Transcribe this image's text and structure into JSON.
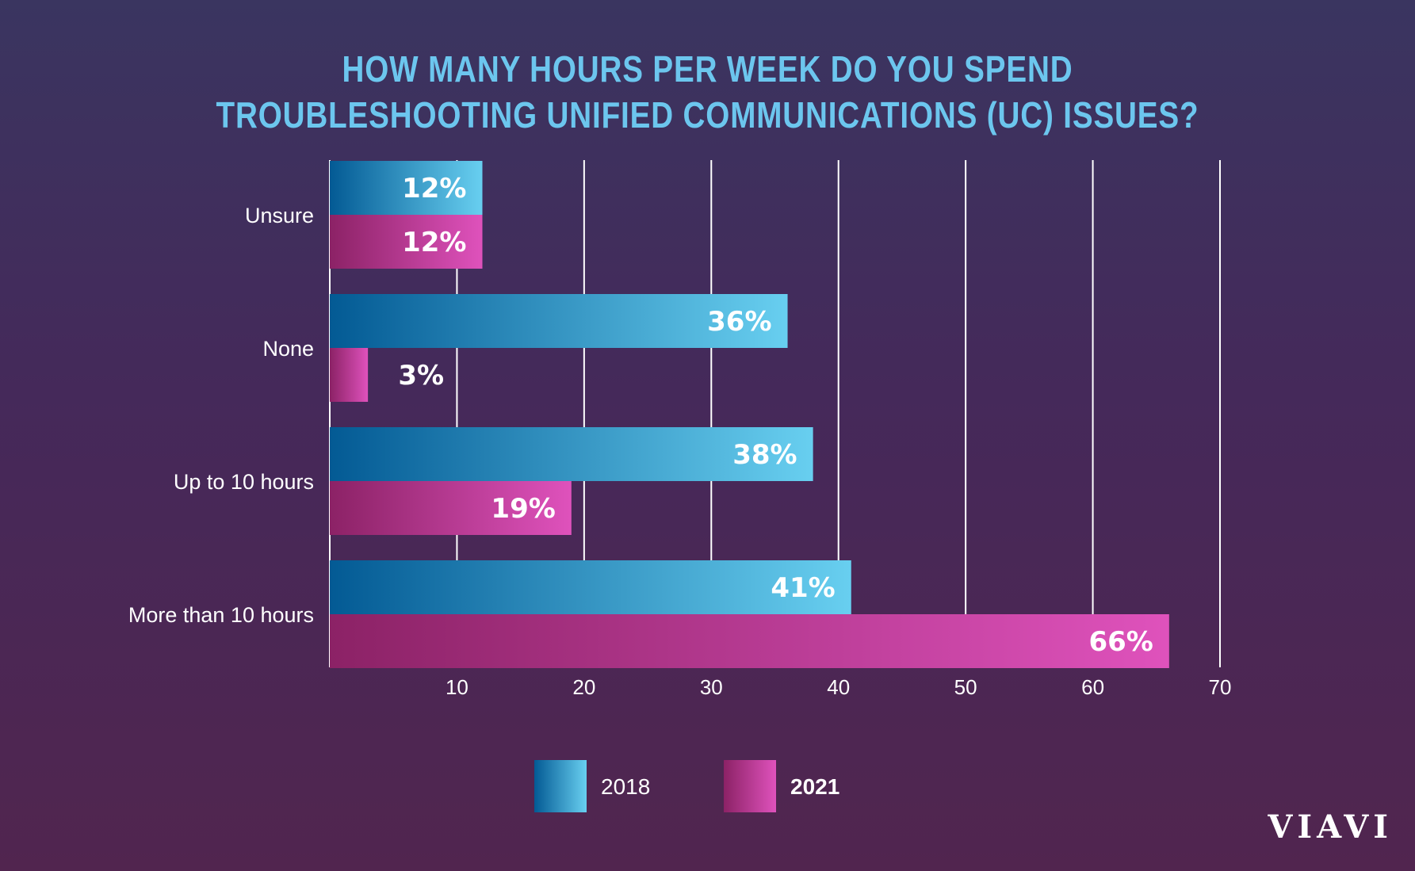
{
  "title_lines": [
    "HOW MANY HOURS PER WEEK DO YOU SPEND",
    "TROUBLESHOOTING UNIFIED COMMUNICATIONS (UC) ISSUES?"
  ],
  "brand": "VIAVI",
  "colors": {
    "series_2018_start": "#035a94",
    "series_2018_end": "#68cff0",
    "series_2021_start": "#8c2266",
    "series_2021_end": "#df52bc",
    "gridline": "#ffffff",
    "title": "#6cc6ee"
  },
  "chart_data": {
    "type": "bar",
    "orientation": "horizontal",
    "title": "HOW MANY HOURS PER WEEK DO YOU SPEND TROUBLESHOOTING UNIFIED COMMUNICATIONS (UC) ISSUES?",
    "categories": [
      "Unsure",
      "None",
      "Up to 10 hours",
      "More than 10 hours"
    ],
    "series": [
      {
        "name": "2018",
        "values": [
          12,
          36,
          38,
          41
        ],
        "labels": [
          "12%",
          "36%",
          "38%",
          "41%"
        ]
      },
      {
        "name": "2021",
        "values": [
          12,
          3,
          19,
          66
        ],
        "labels": [
          "12%",
          "3%",
          "19%",
          "66%"
        ]
      }
    ],
    "xlim": [
      0,
      70
    ],
    "xticks": [
      10,
      20,
      30,
      40,
      50,
      60,
      70
    ],
    "grid": true,
    "legend": "bottom-center"
  }
}
